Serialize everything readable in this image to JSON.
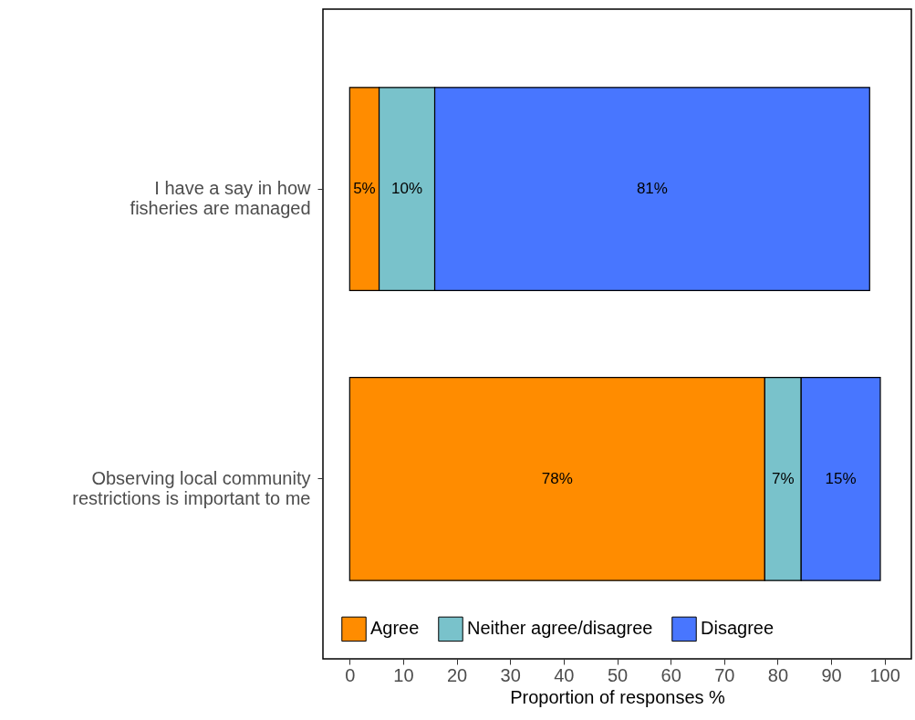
{
  "chart_data": {
    "type": "bar",
    "orientation": "horizontal",
    "stacked": true,
    "categories": [
      "I have a say in how fisheries are managed",
      "Observing local community restrictions is important to me"
    ],
    "series": [
      {
        "name": "Agree",
        "color": "#ff8c00",
        "values": [
          5.5,
          77.6
        ],
        "value_labels": [
          "5%",
          "78%"
        ]
      },
      {
        "name": "Neither agree/disagree",
        "color": "#79c2cb",
        "values": [
          10.4,
          6.8
        ],
        "value_labels": [
          "10%",
          "7%"
        ]
      },
      {
        "name": "Disagree",
        "color": "#4876ff",
        "values": [
          81.3,
          14.8
        ],
        "value_labels": [
          "81%",
          "15%"
        ]
      }
    ],
    "xlabel": "Proportion of responses %",
    "xlim": [
      -5,
      105
    ],
    "xticks": [
      0,
      10,
      20,
      30,
      40,
      50,
      60,
      70,
      80,
      90,
      100
    ],
    "legend": "bottom",
    "grid": false
  }
}
